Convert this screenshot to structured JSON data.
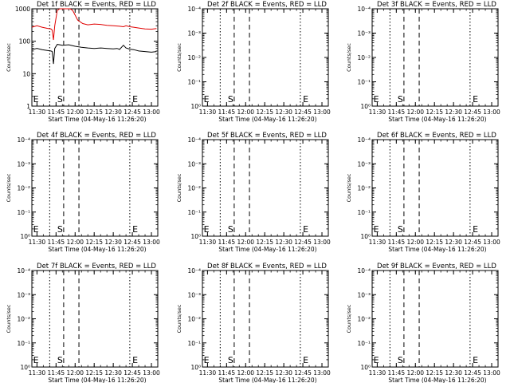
{
  "colors": {
    "events": "#000000",
    "lld": "#e00000",
    "frame": "#000000",
    "background": "#ffffff"
  },
  "chart_data": [
    {
      "type": "line",
      "panel": 1,
      "title": "Det 1f BLACK = Events, RED = LLD",
      "xlabel": "Start Time (04-May-16 11:26:20)",
      "ylabel": "Counts/sec",
      "x_tick_labels": [
        "11:30",
        "11:45",
        "12:00",
        "12:15",
        "12:30",
        "12:45",
        "13:00"
      ],
      "y_tick_labels": [
        "1",
        "10",
        "100",
        "1000"
      ],
      "yscale": "log",
      "ylim": [
        1,
        1000
      ],
      "markers": [
        "E",
        "S",
        "E"
      ],
      "series": [
        {
          "color": "#e00000",
          "x": [
            "11:26",
            "11:30",
            "11:34",
            "11:38",
            "11:41",
            "11:42",
            "11:43",
            "11:44",
            "11:46",
            "11:48",
            "11:50",
            "11:53",
            "11:56",
            "11:58",
            "12:02",
            "12:06",
            "12:10",
            "12:15",
            "12:20",
            "12:25",
            "12:30",
            "12:35",
            "12:38",
            "12:40",
            "12:43",
            "12:46",
            "12:50",
            "12:55",
            "13:00",
            "13:04"
          ],
          "y": [
            270,
            300,
            270,
            250,
            240,
            220,
            110,
            300,
            900,
            1000,
            1000,
            1000,
            1000,
            900,
            450,
            350,
            320,
            340,
            330,
            310,
            300,
            290,
            280,
            300,
            280,
            270,
            255,
            240,
            235,
            245
          ]
        },
        {
          "color": "#000000",
          "x": [
            "11:26",
            "11:30",
            "11:34",
            "11:38",
            "11:41",
            "11:42",
            "11:43",
            "11:44",
            "11:46",
            "11:50",
            "11:55",
            "12:00",
            "12:05",
            "12:10",
            "12:15",
            "12:20",
            "12:25",
            "12:30",
            "12:33",
            "12:35",
            "12:38",
            "12:40",
            "12:43",
            "12:46",
            "12:50",
            "12:55",
            "13:00",
            "13:04"
          ],
          "y": [
            55,
            60,
            55,
            52,
            50,
            48,
            20,
            60,
            80,
            75,
            78,
            70,
            65,
            62,
            60,
            62,
            60,
            58,
            60,
            56,
            75,
            62,
            57,
            55,
            50,
            48,
            46,
            48
          ]
        }
      ]
    },
    {
      "type": "line",
      "panel": 2,
      "title": "Det 2f BLACK = Events, RED = LLD",
      "xlabel": "Start Time (04-May-16 11:26:20)",
      "ylabel": "Counts/sec",
      "x_tick_labels": [
        "11:30",
        "11:45",
        "12:00",
        "12:15",
        "12:30",
        "12:45",
        "13:00"
      ],
      "y_tick_labels": [
        "10⁰",
        "10⁻¹",
        "10⁻²",
        "10⁻³",
        "10⁻⁴"
      ],
      "markers": [
        "E",
        "S",
        "E"
      ],
      "series": []
    },
    {
      "type": "line",
      "panel": 3,
      "title": "Det 3f BLACK = Events, RED = LLD",
      "xlabel": "Start Time (04-May-16 11:26:20)",
      "ylabel": "Counts/sec",
      "x_tick_labels": [
        "11:30",
        "11:45",
        "12:00",
        "12:15",
        "12:30",
        "12:45",
        "13:00"
      ],
      "y_tick_labels": [
        "10⁰",
        "10⁻¹",
        "10⁻²",
        "10⁻³",
        "10⁻⁴"
      ],
      "markers": [
        "E",
        "S",
        "E"
      ],
      "series": []
    },
    {
      "type": "line",
      "panel": 4,
      "title": "Det 4f BLACK = Events, RED = LLD",
      "xlabel": "Start Time (04-May-16 11:26:20)",
      "ylabel": "Counts/sec",
      "x_tick_labels": [
        "11:30",
        "11:45",
        "12:00",
        "12:15",
        "12:30",
        "12:45",
        "13:00"
      ],
      "y_tick_labels": [
        "10⁰",
        "10⁻¹",
        "10⁻²",
        "10⁻³",
        "10⁻⁴"
      ],
      "markers": [
        "E",
        "S",
        "E"
      ],
      "series": []
    },
    {
      "type": "line",
      "panel": 5,
      "title": "Det 5f BLACK = Events, RED = LLD",
      "xlabel": "Start Time (04-May-16 11:26:20)",
      "ylabel": "Counts/sec",
      "x_tick_labels": [
        "11:30",
        "11:45",
        "12:00",
        "12:15",
        "12:30",
        "12:45",
        "13:00"
      ],
      "y_tick_labels": [
        "10⁰",
        "10⁻¹",
        "10⁻²",
        "10⁻³",
        "10⁻⁴"
      ],
      "markers": [
        "E",
        "S",
        "E"
      ],
      "series": []
    },
    {
      "type": "line",
      "panel": 6,
      "title": "Det 6f BLACK = Events, RED = LLD",
      "xlabel": "Start Time (04-May-16 11:26:20)",
      "ylabel": "Counts/sec",
      "x_tick_labels": [
        "11:30",
        "11:45",
        "12:00",
        "12:15",
        "12:30",
        "12:45",
        "13:00"
      ],
      "y_tick_labels": [
        "10⁰",
        "10⁻¹",
        "10⁻²",
        "10⁻³",
        "10⁻⁴"
      ],
      "markers": [
        "E",
        "S",
        "E"
      ],
      "series": []
    },
    {
      "type": "line",
      "panel": 7,
      "title": "Det 7f BLACK = Events, RED = LLD",
      "xlabel": "Start Time (04-May-16 11:26:20)",
      "ylabel": "Counts/sec",
      "x_tick_labels": [
        "11:30",
        "11:45",
        "12:00",
        "12:15",
        "12:30",
        "12:45",
        "13:00"
      ],
      "y_tick_labels": [
        "10⁰",
        "10⁻¹",
        "10⁻²",
        "10⁻³",
        "10⁻⁴"
      ],
      "markers": [
        "E",
        "S",
        "E"
      ],
      "series": []
    },
    {
      "type": "line",
      "panel": 8,
      "title": "Det 8f BLACK = Events, RED = LLD",
      "xlabel": "Start Time (04-May-16 11:26:20)",
      "ylabel": "Counts/sec",
      "x_tick_labels": [
        "11:30",
        "11:45",
        "12:00",
        "12:15",
        "12:30",
        "12:45",
        "13:00"
      ],
      "y_tick_labels": [
        "10⁰",
        "10⁻¹",
        "10⁻²",
        "10⁻³",
        "10⁻⁴"
      ],
      "markers": [
        "E",
        "S",
        "E"
      ],
      "series": []
    },
    {
      "type": "line",
      "panel": 9,
      "title": "Det 9f BLACK = Events, RED = LLD",
      "xlabel": "Start Time (04-May-16 11:26:20)",
      "ylabel": "Counts/sec",
      "x_tick_labels": [
        "11:30",
        "11:45",
        "12:00",
        "12:15",
        "12:30",
        "12:45",
        "13:00"
      ],
      "y_tick_labels": [
        "10⁰",
        "10⁻¹",
        "10⁻²",
        "10⁻³",
        "10⁻⁴"
      ],
      "markers": [
        "E",
        "S",
        "E"
      ],
      "series": []
    }
  ]
}
